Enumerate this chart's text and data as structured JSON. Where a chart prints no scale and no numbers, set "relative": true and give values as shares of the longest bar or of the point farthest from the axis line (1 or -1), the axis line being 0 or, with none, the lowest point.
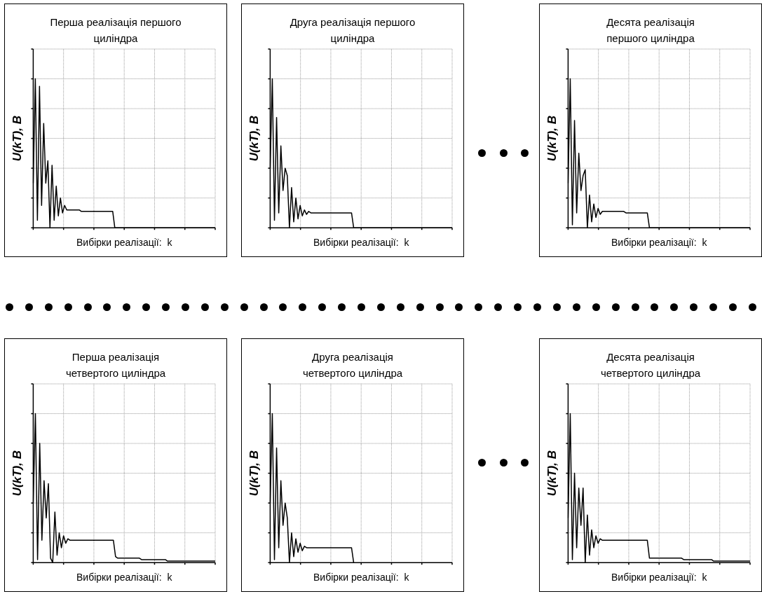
{
  "chart_data": [
    {
      "type": "line",
      "title": "Перша реалізація першого циліндра",
      "xlabel": "Вибірки реалізації:  k",
      "ylabel": "U(kT), B",
      "relative": true,
      "grid": true,
      "tick_labels": false,
      "categories": [
        null,
        null,
        null,
        null,
        null,
        null,
        null,
        null,
        null,
        null,
        null,
        null,
        null,
        null,
        null,
        null,
        null,
        null,
        null,
        null,
        null,
        null,
        null,
        null,
        null,
        null,
        null,
        null,
        null,
        null,
        null,
        null,
        null,
        null,
        null,
        null,
        null,
        null,
        null,
        null,
        null,
        null,
        null,
        null,
        null,
        null,
        null,
        null,
        null,
        null,
        null,
        null,
        null,
        null,
        null,
        null,
        null,
        null,
        null,
        null,
        null,
        null,
        null,
        null,
        null,
        null,
        null,
        null,
        null,
        null,
        null,
        null,
        null,
        null,
        null,
        null,
        null,
        null,
        null,
        null,
        null,
        null,
        null,
        null,
        null,
        null,
        null,
        null
      ],
      "series": [
        {
          "color": "#000000",
          "values": [
            0.3,
            1,
            0.05,
            0.95,
            0.15,
            0.7,
            0.3,
            0.45,
            0,
            0.42,
            0.05,
            0.28,
            0.08,
            0.2,
            0.1,
            0.15,
            0.12,
            0.12,
            0.12,
            0.12,
            0.12,
            0.12,
            0.12,
            0.11,
            0.11,
            0.11,
            0.11,
            0.11,
            0.11,
            0.11,
            0.11,
            0.11,
            0.11,
            0.11,
            0.11,
            0.11,
            0.11,
            0.11,
            0.11,
            0,
            0,
            0,
            0,
            0,
            0,
            0,
            0,
            0,
            0,
            0,
            0,
            0,
            0,
            0,
            0,
            0,
            0,
            0,
            0,
            0,
            0,
            0,
            0,
            0,
            0,
            0,
            0,
            0,
            0,
            0,
            0,
            0,
            0,
            0,
            0,
            0,
            0,
            0,
            0,
            0,
            0,
            0,
            0,
            0,
            0,
            0,
            0,
            0
          ]
        }
      ]
    },
    {
      "type": "line",
      "title": "Друга реалізація першого циліндра",
      "xlabel": "Вибірки реалізації:  k",
      "ylabel": "U(kT), B",
      "relative": true,
      "grid": true,
      "tick_labels": false,
      "categories": [
        null,
        null,
        null,
        null,
        null,
        null,
        null,
        null,
        null,
        null,
        null,
        null,
        null,
        null,
        null,
        null,
        null,
        null,
        null,
        null,
        null,
        null,
        null,
        null,
        null,
        null,
        null,
        null,
        null,
        null,
        null,
        null,
        null,
        null,
        null,
        null,
        null,
        null,
        null,
        null,
        null,
        null,
        null,
        null,
        null,
        null,
        null,
        null,
        null,
        null,
        null,
        null,
        null,
        null,
        null,
        null,
        null,
        null,
        null,
        null,
        null,
        null,
        null,
        null,
        null,
        null,
        null,
        null,
        null,
        null,
        null,
        null,
        null,
        null,
        null,
        null,
        null,
        null,
        null,
        null,
        null,
        null,
        null,
        null,
        null,
        null
      ],
      "series": [
        {
          "color": "#000000",
          "values": [
            0.4,
            1,
            0.05,
            0.74,
            0.1,
            0.55,
            0.25,
            0.4,
            0.35,
            0,
            0.27,
            0.04,
            0.2,
            0.06,
            0.15,
            0.08,
            0.12,
            0.09,
            0.11,
            0.1,
            0.1,
            0.1,
            0.1,
            0.1,
            0.1,
            0.1,
            0.1,
            0.1,
            0.1,
            0.1,
            0.1,
            0.1,
            0.1,
            0.1,
            0.1,
            0.1,
            0.1,
            0.1,
            0.1,
            0,
            0,
            0,
            0,
            0,
            0,
            0,
            0,
            0,
            0,
            0,
            0,
            0,
            0,
            0,
            0,
            0,
            0,
            0,
            0,
            0,
            0,
            0,
            0,
            0,
            0,
            0,
            0,
            0,
            0,
            0,
            0,
            0,
            0,
            0,
            0,
            0,
            0,
            0,
            0,
            0,
            0,
            0,
            0,
            0,
            0,
            0
          ]
        }
      ]
    },
    {
      "type": "line",
      "title": "Десята реалізація першого циліндра",
      "xlabel": "Вибірки реалізації:  k",
      "ylabel": "U(kT), B",
      "relative": true,
      "grid": true,
      "tick_labels": false,
      "categories": [
        null,
        null,
        null,
        null,
        null,
        null,
        null,
        null,
        null,
        null,
        null,
        null,
        null,
        null,
        null,
        null,
        null,
        null,
        null,
        null,
        null,
        null,
        null,
        null,
        null,
        null,
        null,
        null,
        null,
        null,
        null,
        null,
        null,
        null,
        null,
        null,
        null,
        null,
        null,
        null,
        null,
        null,
        null,
        null,
        null,
        null,
        null,
        null,
        null,
        null,
        null,
        null,
        null,
        null,
        null,
        null,
        null,
        null,
        null,
        null,
        null,
        null,
        null,
        null,
        null,
        null,
        null,
        null,
        null,
        null,
        null,
        null,
        null,
        null,
        null,
        null,
        null,
        null,
        null,
        null,
        null,
        null,
        null,
        null,
        null,
        null
      ],
      "series": [
        {
          "color": "#000000",
          "values": [
            0.3,
            1,
            0.02,
            0.72,
            0.1,
            0.5,
            0.25,
            0.35,
            0.39,
            0,
            0.22,
            0.04,
            0.16,
            0.07,
            0.13,
            0.09,
            0.11,
            0.11,
            0.11,
            0.11,
            0.11,
            0.11,
            0.11,
            0.11,
            0.11,
            0.11,
            0.11,
            0.1,
            0.1,
            0.1,
            0.1,
            0.1,
            0.1,
            0.1,
            0.1,
            0.1,
            0.1,
            0.1,
            0,
            0,
            0,
            0,
            0,
            0,
            0,
            0,
            0,
            0,
            0,
            0,
            0,
            0,
            0,
            0,
            0,
            0,
            0,
            0,
            0,
            0,
            0,
            0,
            0,
            0,
            0,
            0,
            0,
            0,
            0,
            0,
            0,
            0,
            0,
            0,
            0,
            0,
            0,
            0,
            0,
            0,
            0,
            0,
            0,
            0,
            0,
            0
          ]
        }
      ]
    },
    {
      "type": "line",
      "title": "Перша реалізація четвертого циліндра",
      "xlabel": "Вибірки реалізації:  k",
      "ylabel": "U(kT), B",
      "relative": true,
      "grid": true,
      "tick_labels": false,
      "categories": [
        null,
        null,
        null,
        null,
        null,
        null,
        null,
        null,
        null,
        null,
        null,
        null,
        null,
        null,
        null,
        null,
        null,
        null,
        null,
        null,
        null,
        null,
        null,
        null,
        null,
        null,
        null,
        null,
        null,
        null,
        null,
        null,
        null,
        null,
        null,
        null,
        null,
        null,
        null,
        null,
        null,
        null,
        null,
        null,
        null,
        null,
        null,
        null,
        null,
        null,
        null,
        null,
        null,
        null,
        null,
        null,
        null,
        null,
        null,
        null,
        null,
        null,
        null,
        null,
        null,
        null,
        null,
        null,
        null,
        null,
        null,
        null,
        null,
        null,
        null,
        null,
        null,
        null,
        null,
        null,
        null,
        null,
        null,
        null,
        null
      ],
      "series": [
        {
          "color": "#000000",
          "values": [
            0.4,
            1,
            0.02,
            0.8,
            0.15,
            0.55,
            0.3,
            0.53,
            0.03,
            0,
            0.34,
            0.05,
            0.2,
            0.1,
            0.18,
            0.13,
            0.16,
            0.15,
            0.15,
            0.15,
            0.15,
            0.15,
            0.15,
            0.15,
            0.15,
            0.15,
            0.15,
            0.15,
            0.15,
            0.15,
            0.15,
            0.15,
            0.15,
            0.15,
            0.15,
            0.15,
            0.15,
            0.15,
            0.04,
            0.03,
            0.03,
            0.03,
            0.03,
            0.03,
            0.03,
            0.03,
            0.03,
            0.03,
            0.03,
            0.03,
            0.02,
            0.02,
            0.02,
            0.02,
            0.02,
            0.02,
            0.02,
            0.02,
            0.02,
            0.02,
            0.02,
            0.02,
            0.01,
            0.01,
            0.01,
            0.01,
            0.01,
            0.01,
            0.01,
            0.01,
            0.01,
            0.01,
            0.01,
            0.01,
            0.01,
            0.01,
            0.01,
            0.01,
            0.01,
            0.01,
            0.01,
            0.01,
            0.01,
            0.01,
            0.01
          ]
        }
      ]
    },
    {
      "type": "line",
      "title": "Друга реалізація четвертого циліндра",
      "xlabel": "Вибірки реалізації:  k",
      "ylabel": "U(kT), B",
      "relative": true,
      "grid": true,
      "tick_labels": false,
      "categories": [
        null,
        null,
        null,
        null,
        null,
        null,
        null,
        null,
        null,
        null,
        null,
        null,
        null,
        null,
        null,
        null,
        null,
        null,
        null,
        null,
        null,
        null,
        null,
        null,
        null,
        null,
        null,
        null,
        null,
        null,
        null,
        null,
        null,
        null,
        null,
        null,
        null,
        null,
        null,
        null,
        null,
        null,
        null,
        null,
        null,
        null,
        null,
        null,
        null,
        null,
        null,
        null,
        null,
        null,
        null,
        null,
        null,
        null,
        null,
        null,
        null,
        null,
        null,
        null,
        null,
        null,
        null,
        null,
        null,
        null,
        null,
        null,
        null,
        null,
        null,
        null,
        null,
        null,
        null,
        null,
        null,
        null,
        null,
        null,
        null,
        null
      ],
      "series": [
        {
          "color": "#000000",
          "values": [
            0.4,
            1,
            0.02,
            0.77,
            0.1,
            0.55,
            0.25,
            0.4,
            0.3,
            0,
            0.2,
            0.04,
            0.16,
            0.07,
            0.13,
            0.08,
            0.11,
            0.1,
            0.1,
            0.1,
            0.1,
            0.1,
            0.1,
            0.1,
            0.1,
            0.1,
            0.1,
            0.1,
            0.1,
            0.1,
            0.1,
            0.1,
            0.1,
            0.1,
            0.1,
            0.1,
            0.1,
            0.1,
            0.1,
            0,
            null,
            null,
            null,
            null,
            null,
            null,
            null,
            null,
            null,
            null,
            null,
            null,
            null,
            null,
            null,
            null,
            null,
            null,
            null,
            null,
            null,
            null,
            null,
            null,
            null,
            null,
            null,
            null,
            null,
            null,
            null,
            null,
            null,
            null,
            null,
            null,
            null,
            null,
            null,
            null,
            null,
            null,
            null,
            null,
            null,
            null
          ]
        }
      ]
    },
    {
      "type": "line",
      "title": "Десята  реалізація четвертого циліндра",
      "xlabel": "Вибірки реалізації:  k",
      "ylabel": "U(kT), B",
      "relative": true,
      "grid": true,
      "tick_labels": false,
      "categories": [
        null,
        null,
        null,
        null,
        null,
        null,
        null,
        null,
        null,
        null,
        null,
        null,
        null,
        null,
        null,
        null,
        null,
        null,
        null,
        null,
        null,
        null,
        null,
        null,
        null,
        null,
        null,
        null,
        null,
        null,
        null,
        null,
        null,
        null,
        null,
        null,
        null,
        null,
        null,
        null,
        null,
        null,
        null,
        null,
        null,
        null,
        null,
        null,
        null,
        null,
        null,
        null,
        null,
        null,
        null,
        null,
        null,
        null,
        null,
        null,
        null,
        null,
        null,
        null,
        null,
        null,
        null,
        null,
        null,
        null,
        null,
        null,
        null,
        null,
        null,
        null,
        null,
        null,
        null,
        null,
        null,
        null,
        null,
        null,
        null,
        null
      ],
      "series": [
        {
          "color": "#000000",
          "values": [
            0.3,
            1,
            0.02,
            0.6,
            0.1,
            0.5,
            0.25,
            0.5,
            0,
            0.32,
            0.05,
            0.22,
            0.1,
            0.18,
            0.13,
            0.16,
            0.15,
            0.15,
            0.15,
            0.15,
            0.15,
            0.15,
            0.15,
            0.15,
            0.15,
            0.15,
            0.15,
            0.15,
            0.15,
            0.15,
            0.15,
            0.15,
            0.15,
            0.15,
            0.15,
            0.15,
            0.15,
            0.15,
            0.03,
            0.03,
            0.03,
            0.03,
            0.03,
            0.03,
            0.03,
            0.03,
            0.03,
            0.03,
            0.03,
            0.03,
            0.03,
            0.03,
            0.03,
            0.03,
            0.02,
            0.02,
            0.02,
            0.02,
            0.02,
            0.02,
            0.02,
            0.02,
            0.02,
            0.02,
            0.02,
            0.02,
            0.02,
            0.02,
            0.01,
            0.01,
            0.01,
            0.01,
            0.01,
            0.01,
            0.01,
            0.01,
            0.01,
            0.01,
            0.01,
            0.01,
            0.01,
            0.01,
            0.01,
            0.01,
            0.01,
            0.01
          ]
        }
      ]
    }
  ]
}
